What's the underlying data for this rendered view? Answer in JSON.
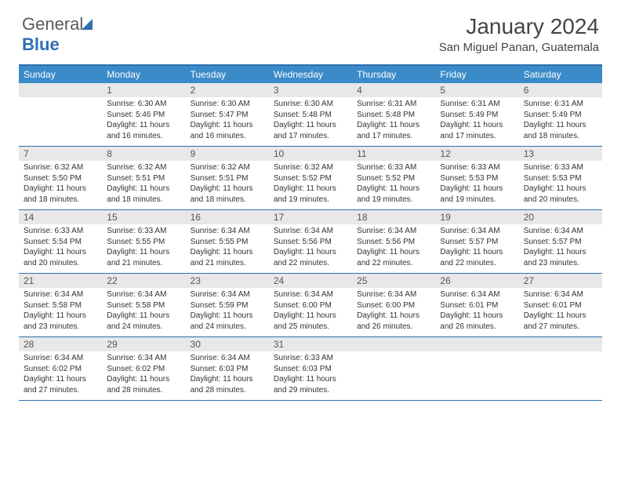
{
  "logo": {
    "text1": "General",
    "text2": "Blue"
  },
  "title": "January 2024",
  "location": "San Miguel Panan, Guatemala",
  "colors": {
    "header_bg": "#3b8bc9",
    "border": "#2f6fb0",
    "daynum_bg": "#e8e8e8"
  },
  "weekdays": [
    "Sunday",
    "Monday",
    "Tuesday",
    "Wednesday",
    "Thursday",
    "Friday",
    "Saturday"
  ],
  "weeks": [
    [
      {
        "n": "",
        "sr": "",
        "ss": "",
        "dl": ""
      },
      {
        "n": "1",
        "sr": "Sunrise: 6:30 AM",
        "ss": "Sunset: 5:46 PM",
        "dl": "Daylight: 11 hours and 16 minutes."
      },
      {
        "n": "2",
        "sr": "Sunrise: 6:30 AM",
        "ss": "Sunset: 5:47 PM",
        "dl": "Daylight: 11 hours and 16 minutes."
      },
      {
        "n": "3",
        "sr": "Sunrise: 6:30 AM",
        "ss": "Sunset: 5:48 PM",
        "dl": "Daylight: 11 hours and 17 minutes."
      },
      {
        "n": "4",
        "sr": "Sunrise: 6:31 AM",
        "ss": "Sunset: 5:48 PM",
        "dl": "Daylight: 11 hours and 17 minutes."
      },
      {
        "n": "5",
        "sr": "Sunrise: 6:31 AM",
        "ss": "Sunset: 5:49 PM",
        "dl": "Daylight: 11 hours and 17 minutes."
      },
      {
        "n": "6",
        "sr": "Sunrise: 6:31 AM",
        "ss": "Sunset: 5:49 PM",
        "dl": "Daylight: 11 hours and 18 minutes."
      }
    ],
    [
      {
        "n": "7",
        "sr": "Sunrise: 6:32 AM",
        "ss": "Sunset: 5:50 PM",
        "dl": "Daylight: 11 hours and 18 minutes."
      },
      {
        "n": "8",
        "sr": "Sunrise: 6:32 AM",
        "ss": "Sunset: 5:51 PM",
        "dl": "Daylight: 11 hours and 18 minutes."
      },
      {
        "n": "9",
        "sr": "Sunrise: 6:32 AM",
        "ss": "Sunset: 5:51 PM",
        "dl": "Daylight: 11 hours and 18 minutes."
      },
      {
        "n": "10",
        "sr": "Sunrise: 6:32 AM",
        "ss": "Sunset: 5:52 PM",
        "dl": "Daylight: 11 hours and 19 minutes."
      },
      {
        "n": "11",
        "sr": "Sunrise: 6:33 AM",
        "ss": "Sunset: 5:52 PM",
        "dl": "Daylight: 11 hours and 19 minutes."
      },
      {
        "n": "12",
        "sr": "Sunrise: 6:33 AM",
        "ss": "Sunset: 5:53 PM",
        "dl": "Daylight: 11 hours and 19 minutes."
      },
      {
        "n": "13",
        "sr": "Sunrise: 6:33 AM",
        "ss": "Sunset: 5:53 PM",
        "dl": "Daylight: 11 hours and 20 minutes."
      }
    ],
    [
      {
        "n": "14",
        "sr": "Sunrise: 6:33 AM",
        "ss": "Sunset: 5:54 PM",
        "dl": "Daylight: 11 hours and 20 minutes."
      },
      {
        "n": "15",
        "sr": "Sunrise: 6:33 AM",
        "ss": "Sunset: 5:55 PM",
        "dl": "Daylight: 11 hours and 21 minutes."
      },
      {
        "n": "16",
        "sr": "Sunrise: 6:34 AM",
        "ss": "Sunset: 5:55 PM",
        "dl": "Daylight: 11 hours and 21 minutes."
      },
      {
        "n": "17",
        "sr": "Sunrise: 6:34 AM",
        "ss": "Sunset: 5:56 PM",
        "dl": "Daylight: 11 hours and 22 minutes."
      },
      {
        "n": "18",
        "sr": "Sunrise: 6:34 AM",
        "ss": "Sunset: 5:56 PM",
        "dl": "Daylight: 11 hours and 22 minutes."
      },
      {
        "n": "19",
        "sr": "Sunrise: 6:34 AM",
        "ss": "Sunset: 5:57 PM",
        "dl": "Daylight: 11 hours and 22 minutes."
      },
      {
        "n": "20",
        "sr": "Sunrise: 6:34 AM",
        "ss": "Sunset: 5:57 PM",
        "dl": "Daylight: 11 hours and 23 minutes."
      }
    ],
    [
      {
        "n": "21",
        "sr": "Sunrise: 6:34 AM",
        "ss": "Sunset: 5:58 PM",
        "dl": "Daylight: 11 hours and 23 minutes."
      },
      {
        "n": "22",
        "sr": "Sunrise: 6:34 AM",
        "ss": "Sunset: 5:58 PM",
        "dl": "Daylight: 11 hours and 24 minutes."
      },
      {
        "n": "23",
        "sr": "Sunrise: 6:34 AM",
        "ss": "Sunset: 5:59 PM",
        "dl": "Daylight: 11 hours and 24 minutes."
      },
      {
        "n": "24",
        "sr": "Sunrise: 6:34 AM",
        "ss": "Sunset: 6:00 PM",
        "dl": "Daylight: 11 hours and 25 minutes."
      },
      {
        "n": "25",
        "sr": "Sunrise: 6:34 AM",
        "ss": "Sunset: 6:00 PM",
        "dl": "Daylight: 11 hours and 26 minutes."
      },
      {
        "n": "26",
        "sr": "Sunrise: 6:34 AM",
        "ss": "Sunset: 6:01 PM",
        "dl": "Daylight: 11 hours and 26 minutes."
      },
      {
        "n": "27",
        "sr": "Sunrise: 6:34 AM",
        "ss": "Sunset: 6:01 PM",
        "dl": "Daylight: 11 hours and 27 minutes."
      }
    ],
    [
      {
        "n": "28",
        "sr": "Sunrise: 6:34 AM",
        "ss": "Sunset: 6:02 PM",
        "dl": "Daylight: 11 hours and 27 minutes."
      },
      {
        "n": "29",
        "sr": "Sunrise: 6:34 AM",
        "ss": "Sunset: 6:02 PM",
        "dl": "Daylight: 11 hours and 28 minutes."
      },
      {
        "n": "30",
        "sr": "Sunrise: 6:34 AM",
        "ss": "Sunset: 6:03 PM",
        "dl": "Daylight: 11 hours and 28 minutes."
      },
      {
        "n": "31",
        "sr": "Sunrise: 6:33 AM",
        "ss": "Sunset: 6:03 PM",
        "dl": "Daylight: 11 hours and 29 minutes."
      },
      {
        "n": "",
        "sr": "",
        "ss": "",
        "dl": ""
      },
      {
        "n": "",
        "sr": "",
        "ss": "",
        "dl": ""
      },
      {
        "n": "",
        "sr": "",
        "ss": "",
        "dl": ""
      }
    ]
  ]
}
